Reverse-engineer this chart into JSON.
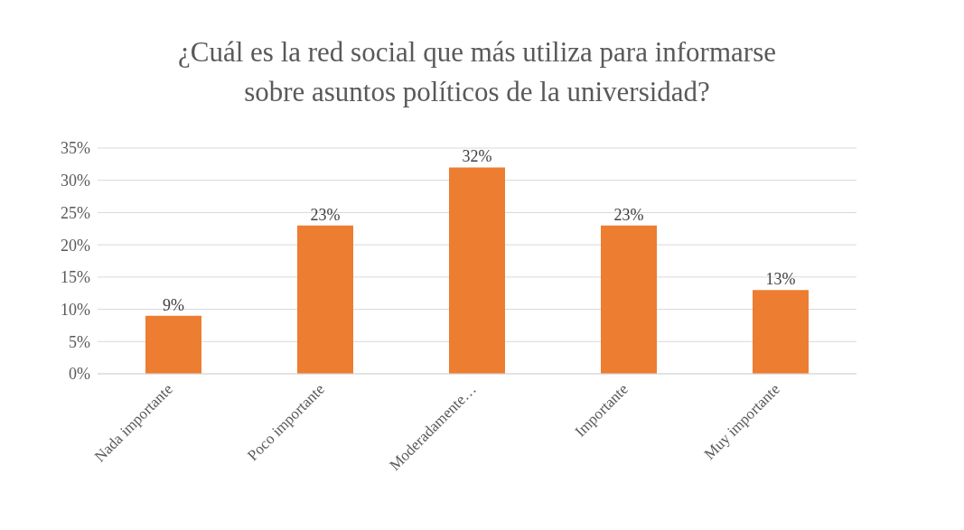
{
  "chart_data": {
    "type": "bar",
    "title": "¿Cuál es la red social que más utiliza para informarse sobre asuntos políticos de la universidad?",
    "categories": [
      "Nada importante",
      "Poco importante",
      "Moderadamente…",
      "Importante",
      "Muy importante"
    ],
    "values": [
      9,
      23,
      32,
      23,
      13
    ],
    "value_labels": [
      "9%",
      "23%",
      "32%",
      "23%",
      "13%"
    ],
    "color": "#ed7d31",
    "ylim": [
      0,
      35
    ],
    "yticks": [
      {
        "value": 0,
        "label": "0%"
      },
      {
        "value": 5,
        "label": "5%"
      },
      {
        "value": 10,
        "label": "10%"
      },
      {
        "value": 15,
        "label": "15%"
      },
      {
        "value": 20,
        "label": "20%"
      },
      {
        "value": 25,
        "label": "25%"
      },
      {
        "value": 30,
        "label": "30%"
      },
      {
        "value": 35,
        "label": "35%"
      }
    ],
    "grid": "y"
  }
}
